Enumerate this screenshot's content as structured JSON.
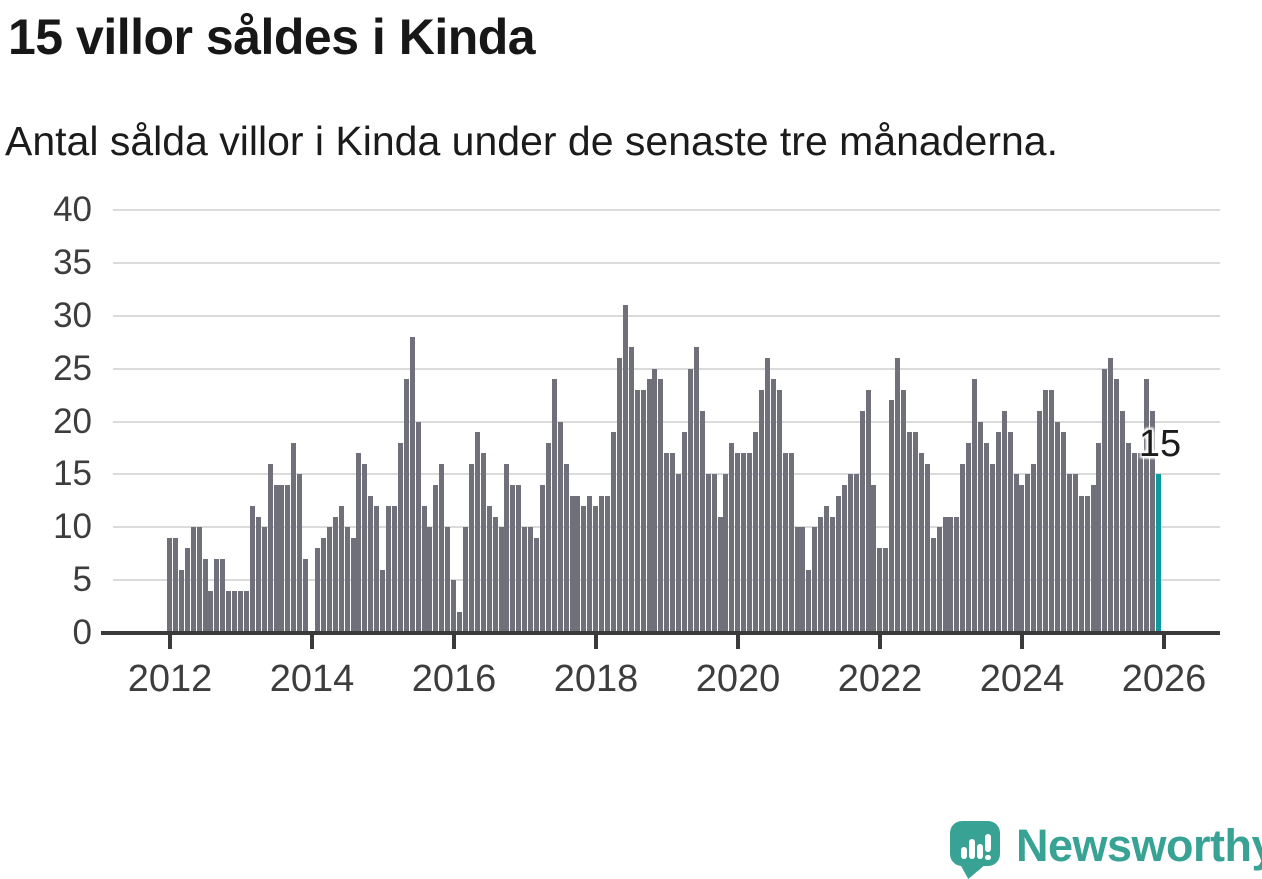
{
  "title": "15 villor såldes i Kinda",
  "subtitle": "Antal sålda villor i Kinda under de senaste tre månaderna.",
  "branding": {
    "logo_text": "Newsworthy",
    "logo_icon": "speech-bubble-bar-chart-icon"
  },
  "colors": {
    "bar_default": "#70707a",
    "bar_highlight": "#0d9a9e",
    "gridline": "#dbdbdb",
    "axis": "#3a3a3a",
    "tick_label": "#3d3d3d",
    "text": "#171717",
    "brand_teal": "#38a394"
  },
  "chart_data": {
    "type": "bar",
    "title": "15 villor såldes i Kinda",
    "subtitle": "Antal sålda villor i Kinda under de senaste tre månaderna.",
    "x_start": "2012-01",
    "frequency": "monthly",
    "x_tick_labels": [
      "2012",
      "2014",
      "2016",
      "2018",
      "2020",
      "2022",
      "2024",
      "2026"
    ],
    "y_ticks": [
      0,
      5,
      10,
      15,
      20,
      25,
      30,
      35,
      40
    ],
    "ylim": [
      0,
      40
    ],
    "grid": "horizontal",
    "highlight_last_bar": true,
    "last_value_label": "15",
    "values": [
      9,
      9,
      6,
      8,
      10,
      10,
      7,
      4,
      7,
      7,
      4,
      4,
      4,
      4,
      12,
      11,
      10,
      16,
      14,
      14,
      14,
      18,
      15,
      7,
      0,
      8,
      9,
      10,
      11,
      12,
      10,
      9,
      17,
      16,
      13,
      12,
      6,
      12,
      12,
      18,
      24,
      28,
      20,
      12,
      10,
      14,
      16,
      10,
      5,
      2,
      10,
      16,
      19,
      17,
      12,
      11,
      10,
      16,
      14,
      14,
      10,
      10,
      9,
      14,
      18,
      24,
      20,
      16,
      13,
      13,
      12,
      13,
      12,
      13,
      13,
      19,
      26,
      31,
      27,
      23,
      23,
      24,
      25,
      24,
      17,
      17,
      15,
      19,
      25,
      27,
      21,
      15,
      15,
      11,
      15,
      18,
      17,
      17,
      17,
      19,
      23,
      26,
      24,
      23,
      17,
      17,
      10,
      10,
      6,
      10,
      11,
      12,
      11,
      13,
      14,
      15,
      15,
      21,
      23,
      14,
      8,
      8,
      22,
      26,
      23,
      19,
      19,
      17,
      16,
      9,
      10,
      11,
      11,
      11,
      16,
      18,
      24,
      20,
      18,
      16,
      19,
      21,
      19,
      15,
      14,
      15,
      16,
      21,
      23,
      23,
      20,
      19,
      15,
      15,
      13,
      13,
      14,
      18,
      25,
      26,
      24,
      21,
      18,
      17,
      17,
      24,
      21,
      15
    ]
  }
}
